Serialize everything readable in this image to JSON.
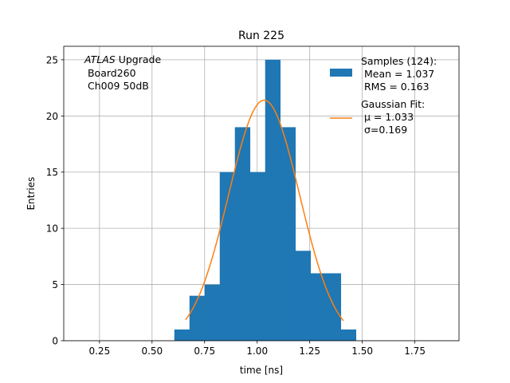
{
  "chart_data": {
    "type": "bar",
    "title": "Run 225",
    "xlabel": "time [ns]",
    "ylabel": "Entries",
    "xlim": [
      0.08,
      1.96
    ],
    "ylim": [
      0,
      26.2
    ],
    "xticks": [
      0.25,
      0.5,
      0.75,
      1.0,
      1.25,
      1.5,
      1.75
    ],
    "xtick_labels": [
      "0.25",
      "0.50",
      "0.75",
      "1.00",
      "1.25",
      "1.50",
      "1.75"
    ],
    "yticks": [
      0,
      5,
      10,
      15,
      20,
      25
    ],
    "ytick_labels": [
      "0",
      "5",
      "10",
      "15",
      "20",
      "25"
    ],
    "grid": true,
    "legend_position": "top-right",
    "annotation": {
      "atlas": "ATLAS",
      "line1_rest": " Upgrade",
      "line2": "Board260",
      "line3": "Ch009 50dB"
    },
    "histogram": {
      "color": "#1f77b4",
      "bins": [
        {
          "x0": 0.606,
          "x1": 0.678,
          "count": 1
        },
        {
          "x0": 0.678,
          "x1": 0.75,
          "count": 4
        },
        {
          "x0": 0.75,
          "x1": 0.822,
          "count": 5
        },
        {
          "x0": 0.822,
          "x1": 0.894,
          "count": 15
        },
        {
          "x0": 0.894,
          "x1": 0.966,
          "count": 19
        },
        {
          "x0": 0.966,
          "x1": 1.038,
          "count": 15
        },
        {
          "x0": 1.038,
          "x1": 1.11,
          "count": 25
        },
        {
          "x0": 1.11,
          "x1": 1.182,
          "count": 19
        },
        {
          "x0": 1.182,
          "x1": 1.254,
          "count": 8
        },
        {
          "x0": 1.254,
          "x1": 1.326,
          "count": 6
        },
        {
          "x0": 1.326,
          "x1": 1.398,
          "count": 6
        },
        {
          "x0": 1.398,
          "x1": 1.47,
          "count": 1
        }
      ]
    },
    "gaussian_fit": {
      "color": "#ff7f0e",
      "mu": 1.033,
      "sigma": 0.169,
      "amplitude": 21.4,
      "x_range": [
        0.66,
        1.41
      ]
    },
    "legend": [
      {
        "kind": "patch",
        "color": "#1f77b4",
        "lines": [
          "Samples (124):",
          " Mean = 1.037",
          " RMS = 0.163"
        ]
      },
      {
        "kind": "line",
        "color": "#ff7f0e",
        "lines": [
          "Gaussian Fit:",
          " μ = 1.033",
          " σ=0.169"
        ]
      }
    ]
  }
}
